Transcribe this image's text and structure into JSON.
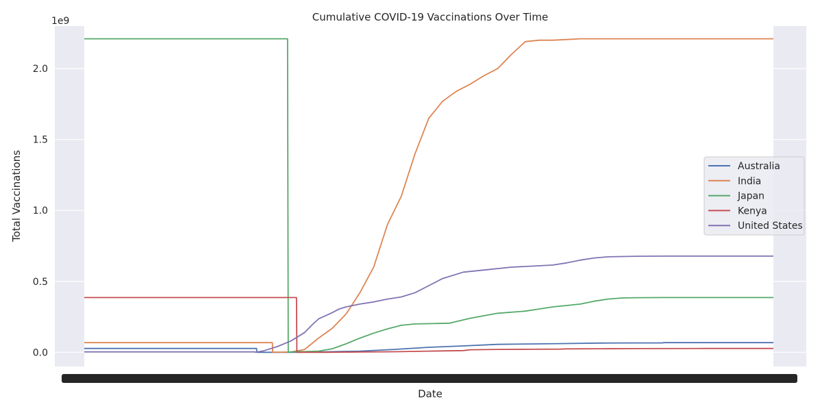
{
  "chart_data": {
    "type": "line",
    "title": "Cumulative COVID-19 Vaccinations Over Time",
    "xlabel": "Date",
    "ylabel": "Total Vaccinations",
    "y_offset_label": "1e9",
    "ylim": [
      -0.1,
      2.3
    ],
    "y_ticks": [
      0.0,
      0.5,
      1.0,
      1.5,
      2.0
    ],
    "y_tick_labels": [
      "0.0",
      "0.5",
      "1.0",
      "1.5",
      "2.0"
    ],
    "xlim": [
      0,
      100
    ],
    "grid": true,
    "legend_position": "center-right",
    "series": [
      {
        "name": "Australia",
        "color": "#4c72b0",
        "x": [
          0,
          25,
          25.05,
          30,
          35,
          40,
          45,
          50,
          55,
          60,
          65,
          70,
          75,
          80,
          84,
          84.05,
          90,
          100
        ],
        "y": [
          0.027,
          0.027,
          0.0,
          0.0,
          0.003,
          0.008,
          0.02,
          0.035,
          0.045,
          0.056,
          0.059,
          0.062,
          0.065,
          0.066,
          0.066,
          0.068,
          0.068,
          0.068
        ]
      },
      {
        "name": "India",
        "color": "#dd8452",
        "x": [
          0,
          27.3,
          27.35,
          30,
          32,
          34,
          36,
          38,
          40,
          42,
          44,
          46,
          48,
          50,
          52,
          54,
          56,
          58,
          60,
          62,
          64,
          66,
          68,
          70,
          72,
          74,
          76,
          78,
          80,
          82,
          84,
          90,
          100
        ],
        "y": [
          0.068,
          0.068,
          0.0,
          0.002,
          0.02,
          0.1,
          0.17,
          0.27,
          0.42,
          0.6,
          0.9,
          1.1,
          1.4,
          1.65,
          1.77,
          1.84,
          1.89,
          1.95,
          2.0,
          2.1,
          2.19,
          2.2,
          2.2,
          2.205,
          2.21,
          2.21,
          2.21,
          2.21,
          2.21,
          2.21,
          2.21,
          2.21,
          2.21
        ]
      },
      {
        "name": "Japan",
        "color": "#55a868",
        "x": [
          0,
          29.5,
          29.6,
          30,
          31,
          32,
          34,
          36,
          38,
          40,
          42,
          44,
          46,
          48,
          50,
          53,
          56,
          60,
          64,
          66,
          68,
          70,
          72,
          74,
          76,
          78,
          80,
          84,
          90,
          100
        ],
        "y": [
          2.21,
          2.21,
          0.0,
          0.003,
          0.005,
          0.005,
          0.008,
          0.025,
          0.06,
          0.1,
          0.135,
          0.165,
          0.19,
          0.2,
          0.202,
          0.205,
          0.24,
          0.275,
          0.29,
          0.305,
          0.32,
          0.33,
          0.34,
          0.36,
          0.375,
          0.383,
          0.385,
          0.386,
          0.386,
          0.386
        ]
      },
      {
        "name": "Kenya",
        "color": "#c44e52",
        "x": [
          0,
          30.8,
          30.85,
          35,
          40,
          45,
          50,
          55,
          56,
          60,
          65,
          69,
          70,
          75,
          80,
          90,
          100
        ],
        "y": [
          0.386,
          0.386,
          0.0,
          0.0,
          0.002,
          0.004,
          0.008,
          0.012,
          0.018,
          0.02,
          0.021,
          0.022,
          0.024,
          0.025,
          0.026,
          0.027,
          0.027
        ]
      },
      {
        "name": "United States",
        "color": "#8172b3",
        "x": [
          0,
          24.8,
          24.85,
          26,
          28,
          30,
          32,
          33,
          34,
          36,
          37,
          38,
          40,
          42,
          44,
          46,
          48,
          50,
          52,
          55,
          58,
          62,
          66,
          68,
          70,
          72,
          74,
          76,
          78,
          80,
          84,
          90,
          100
        ],
        "y": [
          0.003,
          0.003,
          0.0,
          0.01,
          0.04,
          0.08,
          0.14,
          0.19,
          0.235,
          0.28,
          0.305,
          0.32,
          0.34,
          0.355,
          0.375,
          0.39,
          0.42,
          0.47,
          0.52,
          0.565,
          0.58,
          0.6,
          0.61,
          0.615,
          0.63,
          0.65,
          0.665,
          0.673,
          0.675,
          0.677,
          0.678,
          0.678,
          0.678
        ]
      }
    ]
  }
}
